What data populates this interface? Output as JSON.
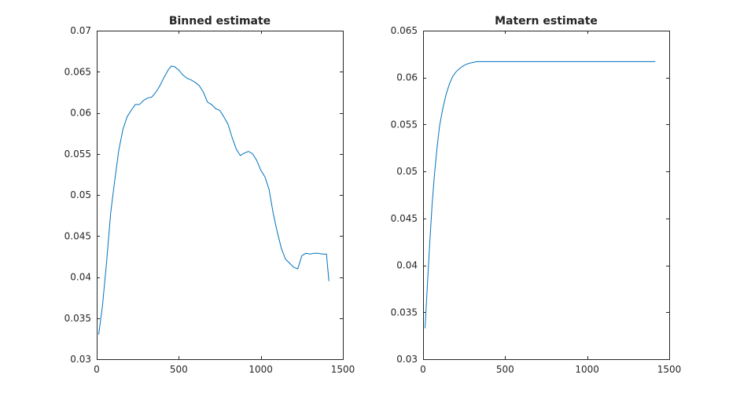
{
  "chart_data": [
    {
      "type": "line",
      "title": "Binned estimate",
      "xlabel": "",
      "ylabel": "",
      "xlim": [
        0,
        1500
      ],
      "ylim": [
        0.03,
        0.07
      ],
      "xticks": [
        0,
        500,
        1000,
        1500
      ],
      "xtick_labels": [
        "0",
        "500",
        "1000",
        "1500"
      ],
      "yticks": [
        0.03,
        0.035,
        0.04,
        0.045,
        0.05,
        0.055,
        0.06,
        0.065,
        0.07
      ],
      "ytick_labels": [
        "0.03",
        "0.035",
        "0.04",
        "0.045",
        "0.05",
        "0.055",
        "0.06",
        "0.065",
        "0.07"
      ],
      "grid": false,
      "legend": "none",
      "series": [
        {
          "color": "#0072bd",
          "x": [
            12,
            35,
            60,
            85,
            110,
            135,
            160,
            185,
            210,
            235,
            260,
            285,
            310,
            335,
            360,
            385,
            410,
            435,
            455,
            475,
            500,
            525,
            550,
            575,
            600,
            625,
            650,
            675,
            700,
            725,
            750,
            775,
            800,
            825,
            850,
            875,
            900,
            925,
            950,
            975,
            1000,
            1025,
            1050,
            1075,
            1100,
            1125,
            1150,
            1175,
            1200,
            1225,
            1250,
            1275,
            1300,
            1325,
            1350,
            1375,
            1400,
            1415
          ],
          "y": [
            0.033,
            0.0365,
            0.0418,
            0.0478,
            0.0518,
            0.0555,
            0.058,
            0.0595,
            0.0603,
            0.061,
            0.061,
            0.0615,
            0.0618,
            0.0619,
            0.0625,
            0.0633,
            0.0643,
            0.0652,
            0.0657,
            0.0656,
            0.0652,
            0.0646,
            0.0642,
            0.064,
            0.0637,
            0.0633,
            0.0625,
            0.0613,
            0.061,
            0.0605,
            0.0603,
            0.0595,
            0.0586,
            0.057,
            0.0556,
            0.0548,
            0.0551,
            0.0553,
            0.055,
            0.0542,
            0.053,
            0.0522,
            0.0507,
            0.0478,
            0.0455,
            0.0435,
            0.0422,
            0.0417,
            0.0412,
            0.041,
            0.0426,
            0.0429,
            0.0428,
            0.0429,
            0.0429,
            0.0428,
            0.0428,
            0.0395
          ]
        }
      ]
    },
    {
      "type": "line",
      "title": "Matern estimate",
      "xlabel": "",
      "ylabel": "",
      "xlim": [
        0,
        1500
      ],
      "ylim": [
        0.03,
        0.065
      ],
      "xticks": [
        0,
        500,
        1000,
        1500
      ],
      "xtick_labels": [
        "0",
        "500",
        "1000",
        "1500"
      ],
      "yticks": [
        0.03,
        0.035,
        0.04,
        0.045,
        0.05,
        0.055,
        0.06,
        0.065
      ],
      "ytick_labels": [
        "0.03",
        "0.035",
        "0.04",
        "0.045",
        "0.05",
        "0.055",
        "0.06",
        "0.065"
      ],
      "grid": false,
      "legend": "none",
      "series": [
        {
          "color": "#0072bd",
          "x": [
            12,
            25,
            40,
            55,
            70,
            85,
            100,
            120,
            140,
            160,
            180,
            200,
            225,
            250,
            275,
            300,
            330,
            360,
            400,
            450,
            500,
            600,
            800,
            1000,
            1200,
            1415
          ],
          "y": [
            0.0333,
            0.0375,
            0.0422,
            0.0465,
            0.0498,
            0.0525,
            0.0548,
            0.0567,
            0.0582,
            0.0593,
            0.0601,
            0.0606,
            0.061,
            0.0613,
            0.0615,
            0.0616,
            0.0617,
            0.0617,
            0.0617,
            0.0617,
            0.0617,
            0.0617,
            0.0617,
            0.0617,
            0.0617,
            0.0617
          ]
        }
      ]
    }
  ]
}
